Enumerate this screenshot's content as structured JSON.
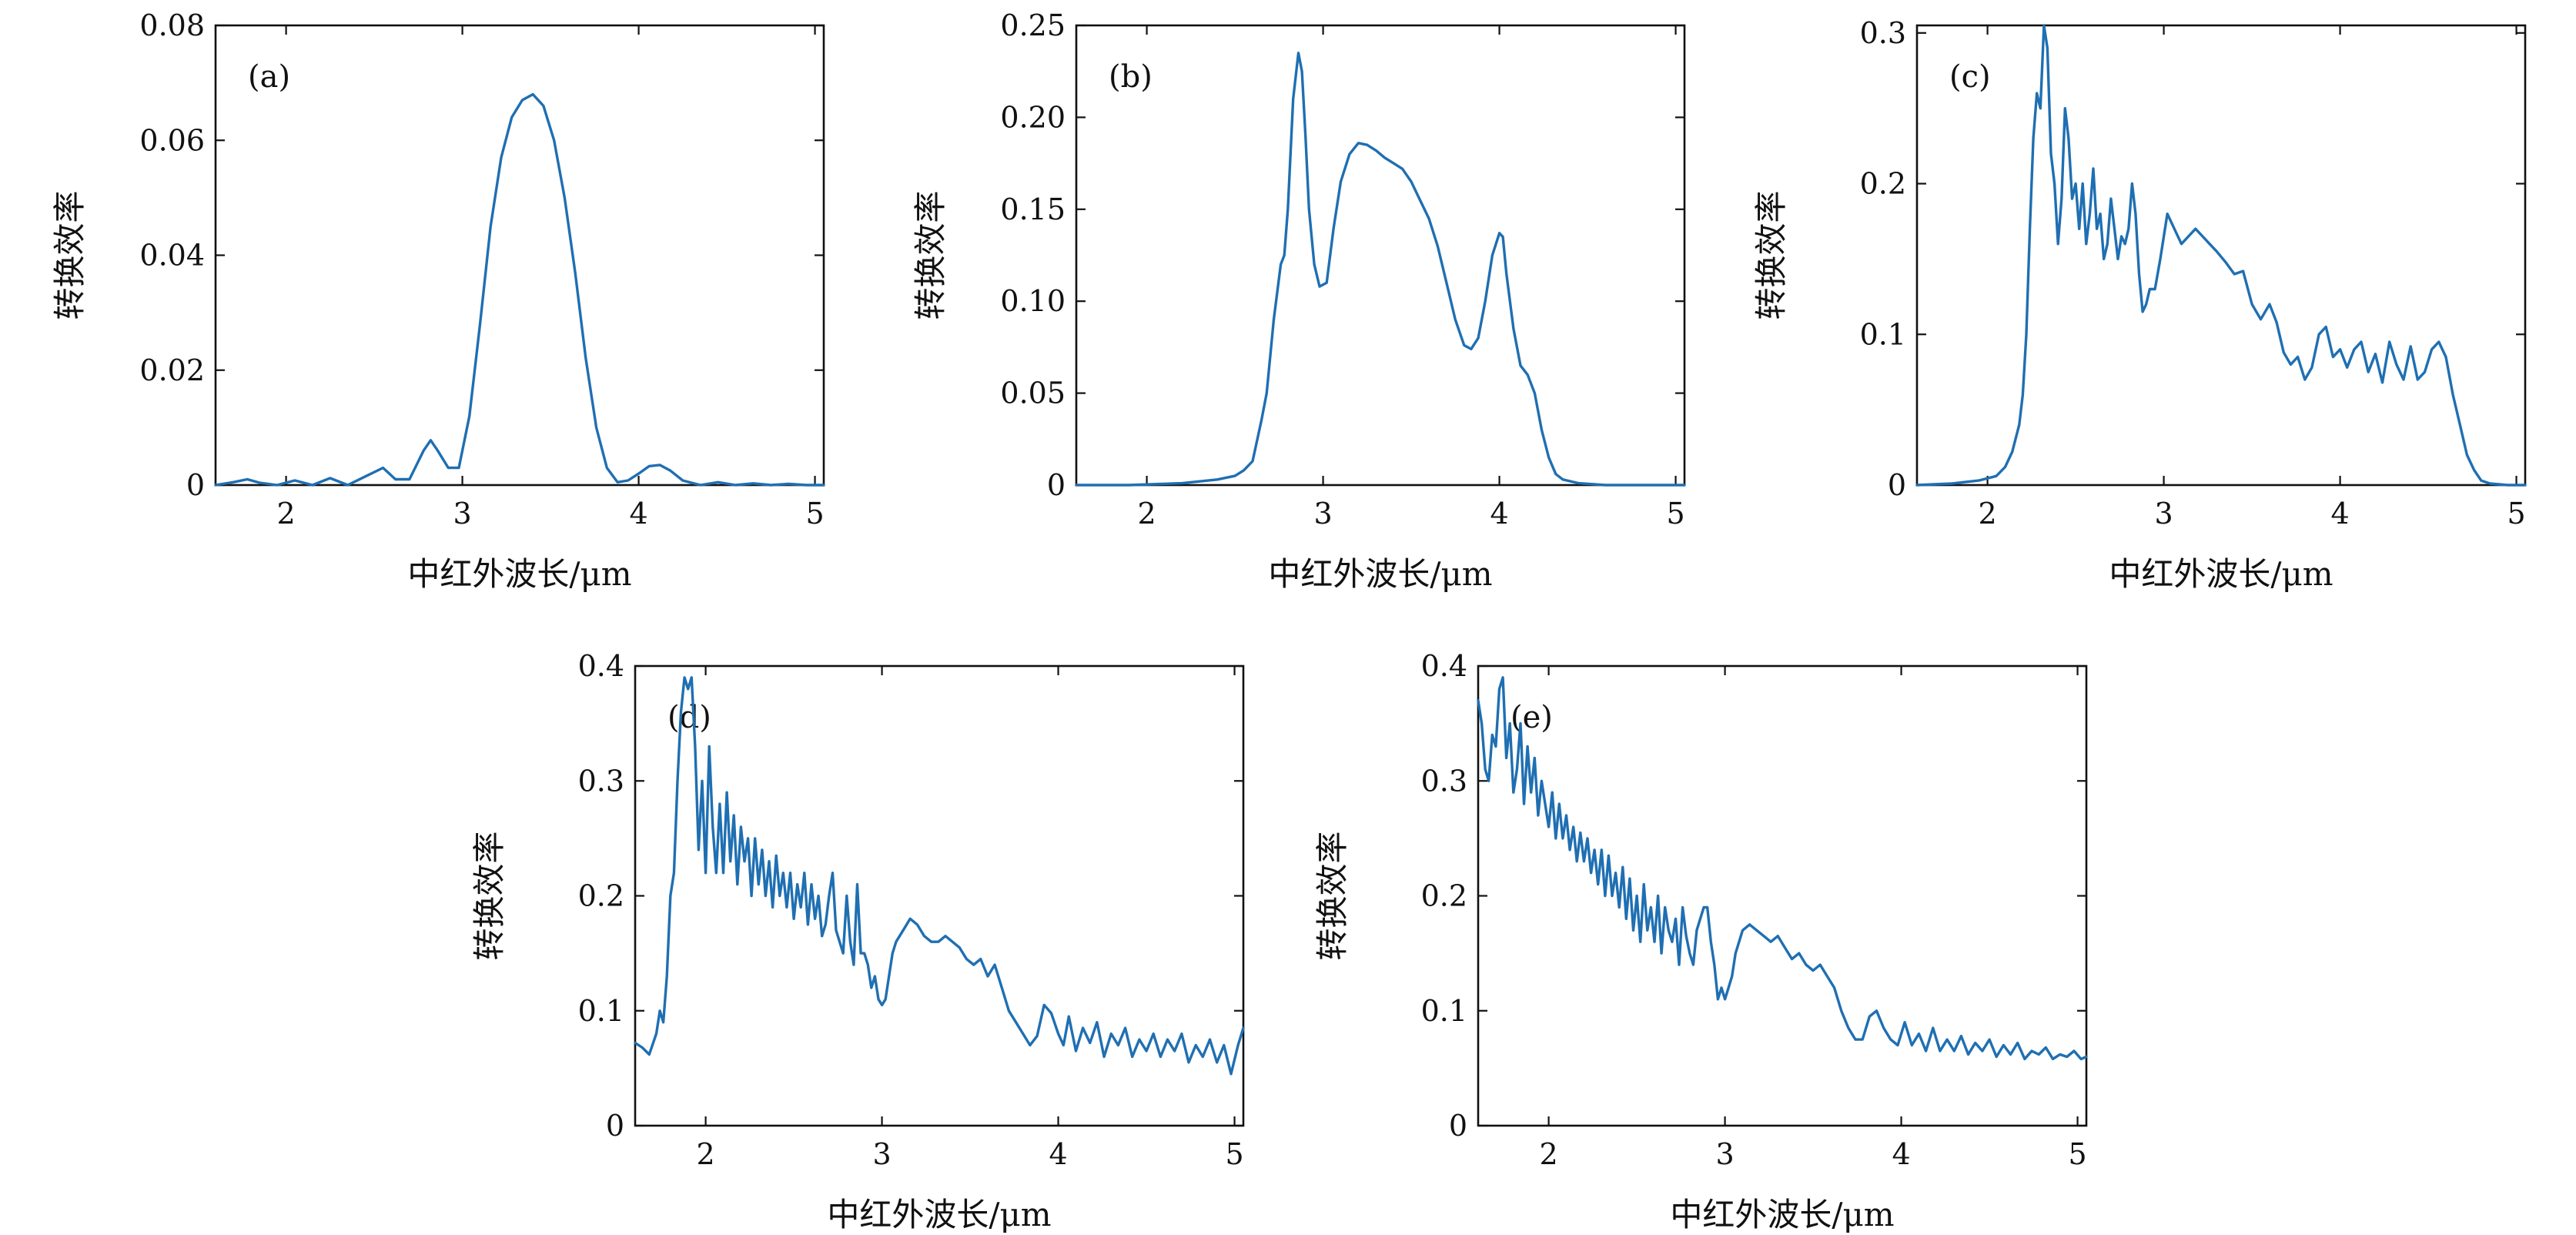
{
  "figure": {
    "background": "#ffffff",
    "line_color": "#1f6fb2"
  },
  "chart_data": [
    {
      "type": "line",
      "panel_label": "(a)",
      "xlabel": "中红外波长/μm",
      "ylabel": "转换效率",
      "xlim": [
        1.6,
        5.05
      ],
      "ylim": [
        0,
        0.08
      ],
      "xticks": [
        2,
        3,
        4,
        5
      ],
      "yticks": [
        0,
        0.02,
        0.04,
        0.06,
        0.08
      ],
      "ytick_labels": [
        "0",
        "0.02",
        "0.04",
        "0.06",
        "0.08"
      ],
      "series": [
        {
          "color": "#1f6fb2",
          "x": [
            1.6,
            1.7,
            1.78,
            1.85,
            1.95,
            2.05,
            2.15,
            2.25,
            2.35,
            2.45,
            2.55,
            2.62,
            2.7,
            2.78,
            2.82,
            2.86,
            2.92,
            2.98,
            3.04,
            3.1,
            3.16,
            3.22,
            3.28,
            3.34,
            3.4,
            3.46,
            3.52,
            3.58,
            3.64,
            3.7,
            3.76,
            3.82,
            3.88,
            3.94,
            4.0,
            4.06,
            4.12,
            4.18,
            4.25,
            4.35,
            4.45,
            4.55,
            4.65,
            4.75,
            4.85,
            4.95,
            5.05
          ],
          "y": [
            0,
            0.0005,
            0.001,
            0.0004,
            0,
            0.0008,
            0,
            0.0012,
            0,
            0.0015,
            0.003,
            0.001,
            0.001,
            0.006,
            0.0078,
            0.006,
            0.003,
            0.003,
            0.012,
            0.028,
            0.045,
            0.057,
            0.064,
            0.067,
            0.068,
            0.066,
            0.06,
            0.05,
            0.037,
            0.022,
            0.01,
            0.003,
            0.0005,
            0.0008,
            0.002,
            0.0033,
            0.0035,
            0.0025,
            0.0008,
            0,
            0.0005,
            0,
            0.0003,
            0,
            0.0002,
            0,
            0
          ]
        }
      ]
    },
    {
      "type": "line",
      "panel_label": "(b)",
      "xlabel": "中红外波长/μm",
      "ylabel": "转换效率",
      "xlim": [
        1.6,
        5.05
      ],
      "ylim": [
        0,
        0.25
      ],
      "xticks": [
        2,
        3,
        4,
        5
      ],
      "yticks": [
        0,
        0.05,
        0.1,
        0.15,
        0.2,
        0.25
      ],
      "ytick_labels": [
        "0",
        "0.05",
        "0.10",
        "0.15",
        "0.20",
        "0.25"
      ],
      "series": [
        {
          "color": "#1f6fb2",
          "x": [
            1.6,
            1.9,
            2.2,
            2.4,
            2.5,
            2.55,
            2.6,
            2.65,
            2.68,
            2.72,
            2.76,
            2.78,
            2.8,
            2.83,
            2.86,
            2.88,
            2.9,
            2.92,
            2.95,
            2.98,
            3.02,
            3.06,
            3.1,
            3.15,
            3.2,
            3.25,
            3.3,
            3.35,
            3.4,
            3.45,
            3.5,
            3.55,
            3.6,
            3.65,
            3.7,
            3.75,
            3.8,
            3.84,
            3.88,
            3.92,
            3.96,
            4.0,
            4.02,
            4.04,
            4.08,
            4.12,
            4.16,
            4.2,
            4.24,
            4.28,
            4.32,
            4.36,
            4.45,
            4.6,
            4.8,
            5.05
          ],
          "y": [
            0,
            0,
            0.001,
            0.003,
            0.005,
            0.008,
            0.013,
            0.035,
            0.05,
            0.09,
            0.12,
            0.125,
            0.15,
            0.21,
            0.235,
            0.225,
            0.19,
            0.15,
            0.12,
            0.108,
            0.11,
            0.14,
            0.165,
            0.18,
            0.186,
            0.185,
            0.182,
            0.178,
            0.175,
            0.172,
            0.165,
            0.155,
            0.145,
            0.13,
            0.11,
            0.09,
            0.076,
            0.074,
            0.08,
            0.1,
            0.125,
            0.137,
            0.135,
            0.115,
            0.085,
            0.065,
            0.06,
            0.05,
            0.03,
            0.015,
            0.006,
            0.003,
            0.001,
            0,
            0,
            0
          ]
        }
      ]
    },
    {
      "type": "line",
      "panel_label": "(c)",
      "xlabel": "中红外波长/μm",
      "ylabel": "转换效率",
      "xlim": [
        1.6,
        5.05
      ],
      "ylim": [
        0,
        0.305
      ],
      "xticks": [
        2,
        3,
        4,
        5
      ],
      "yticks": [
        0,
        0.1,
        0.2,
        0.3
      ],
      "ytick_labels": [
        "0",
        "0.1",
        "0.2",
        "0.3"
      ],
      "series": [
        {
          "color": "#1f6fb2",
          "x": [
            1.6,
            1.8,
            1.95,
            2.05,
            2.1,
            2.14,
            2.18,
            2.2,
            2.22,
            2.24,
            2.26,
            2.28,
            2.3,
            2.32,
            2.34,
            2.36,
            2.38,
            2.4,
            2.42,
            2.44,
            2.46,
            2.48,
            2.5,
            2.52,
            2.54,
            2.56,
            2.58,
            2.6,
            2.62,
            2.64,
            2.66,
            2.68,
            2.7,
            2.72,
            2.74,
            2.76,
            2.78,
            2.8,
            2.82,
            2.84,
            2.86,
            2.88,
            2.9,
            2.92,
            2.95,
            2.98,
            3.02,
            3.06,
            3.1,
            3.14,
            3.18,
            3.22,
            3.26,
            3.3,
            3.35,
            3.4,
            3.45,
            3.5,
            3.55,
            3.6,
            3.64,
            3.68,
            3.72,
            3.76,
            3.8,
            3.84,
            3.88,
            3.92,
            3.96,
            4.0,
            4.04,
            4.08,
            4.12,
            4.16,
            4.2,
            4.24,
            4.28,
            4.32,
            4.36,
            4.4,
            4.44,
            4.48,
            4.52,
            4.56,
            4.6,
            4.64,
            4.68,
            4.72,
            4.76,
            4.8,
            4.85,
            4.95,
            5.05
          ],
          "y": [
            0,
            0.001,
            0.003,
            0.006,
            0.012,
            0.022,
            0.04,
            0.06,
            0.1,
            0.17,
            0.23,
            0.26,
            0.25,
            0.305,
            0.29,
            0.22,
            0.2,
            0.16,
            0.19,
            0.25,
            0.23,
            0.19,
            0.2,
            0.17,
            0.2,
            0.16,
            0.18,
            0.21,
            0.17,
            0.18,
            0.15,
            0.16,
            0.19,
            0.17,
            0.15,
            0.165,
            0.16,
            0.17,
            0.2,
            0.18,
            0.14,
            0.115,
            0.12,
            0.13,
            0.13,
            0.15,
            0.18,
            0.17,
            0.16,
            0.165,
            0.17,
            0.165,
            0.16,
            0.155,
            0.148,
            0.14,
            0.142,
            0.12,
            0.11,
            0.12,
            0.108,
            0.088,
            0.08,
            0.085,
            0.07,
            0.078,
            0.1,
            0.105,
            0.085,
            0.09,
            0.078,
            0.09,
            0.095,
            0.075,
            0.087,
            0.068,
            0.095,
            0.08,
            0.07,
            0.092,
            0.07,
            0.075,
            0.09,
            0.095,
            0.085,
            0.06,
            0.04,
            0.02,
            0.01,
            0.003,
            0.001,
            0,
            0
          ]
        }
      ]
    },
    {
      "type": "line",
      "panel_label": "(d)",
      "xlabel": "中红外波长/μm",
      "ylabel": "转换效率",
      "xlim": [
        1.6,
        5.05
      ],
      "ylim": [
        0,
        0.4
      ],
      "xticks": [
        2,
        3,
        4,
        5
      ],
      "yticks": [
        0,
        0.1,
        0.2,
        0.3,
        0.4
      ],
      "ytick_labels": [
        "0",
        "0.1",
        "0.2",
        "0.3",
        "0.4"
      ],
      "series": [
        {
          "color": "#1f6fb2",
          "x": [
            1.6,
            1.64,
            1.68,
            1.72,
            1.74,
            1.76,
            1.78,
            1.8,
            1.82,
            1.84,
            1.86,
            1.88,
            1.9,
            1.92,
            1.94,
            1.96,
            1.98,
            2.0,
            2.02,
            2.04,
            2.06,
            2.08,
            2.1,
            2.12,
            2.14,
            2.16,
            2.18,
            2.2,
            2.22,
            2.24,
            2.26,
            2.28,
            2.3,
            2.32,
            2.34,
            2.36,
            2.38,
            2.4,
            2.42,
            2.44,
            2.46,
            2.48,
            2.5,
            2.52,
            2.54,
            2.56,
            2.58,
            2.6,
            2.62,
            2.64,
            2.66,
            2.68,
            2.7,
            2.72,
            2.74,
            2.76,
            2.78,
            2.8,
            2.82,
            2.84,
            2.86,
            2.88,
            2.9,
            2.92,
            2.94,
            2.96,
            2.98,
            3.0,
            3.02,
            3.04,
            3.06,
            3.08,
            3.12,
            3.16,
            3.2,
            3.24,
            3.28,
            3.32,
            3.36,
            3.4,
            3.44,
            3.48,
            3.52,
            3.56,
            3.6,
            3.64,
            3.68,
            3.72,
            3.76,
            3.8,
            3.84,
            3.88,
            3.92,
            3.96,
            4.0,
            4.03,
            4.06,
            4.1,
            4.14,
            4.18,
            4.22,
            4.26,
            4.3,
            4.34,
            4.38,
            4.42,
            4.46,
            4.5,
            4.54,
            4.58,
            4.62,
            4.66,
            4.7,
            4.74,
            4.78,
            4.82,
            4.86,
            4.9,
            4.94,
            4.98,
            5.02,
            5.05
          ],
          "y": [
            0.072,
            0.068,
            0.062,
            0.08,
            0.1,
            0.09,
            0.13,
            0.2,
            0.22,
            0.3,
            0.36,
            0.39,
            0.38,
            0.39,
            0.33,
            0.24,
            0.3,
            0.22,
            0.33,
            0.26,
            0.22,
            0.28,
            0.22,
            0.29,
            0.23,
            0.27,
            0.21,
            0.26,
            0.23,
            0.25,
            0.2,
            0.25,
            0.21,
            0.24,
            0.2,
            0.23,
            0.19,
            0.235,
            0.2,
            0.22,
            0.19,
            0.22,
            0.18,
            0.21,
            0.19,
            0.22,
            0.175,
            0.21,
            0.18,
            0.2,
            0.165,
            0.175,
            0.2,
            0.22,
            0.17,
            0.16,
            0.15,
            0.2,
            0.16,
            0.14,
            0.21,
            0.15,
            0.15,
            0.14,
            0.12,
            0.13,
            0.11,
            0.105,
            0.11,
            0.13,
            0.15,
            0.16,
            0.17,
            0.18,
            0.175,
            0.165,
            0.16,
            0.16,
            0.165,
            0.16,
            0.155,
            0.145,
            0.14,
            0.145,
            0.13,
            0.14,
            0.12,
            0.1,
            0.09,
            0.08,
            0.07,
            0.078,
            0.105,
            0.098,
            0.08,
            0.07,
            0.095,
            0.065,
            0.085,
            0.072,
            0.09,
            0.06,
            0.08,
            0.07,
            0.085,
            0.06,
            0.075,
            0.065,
            0.08,
            0.06,
            0.075,
            0.065,
            0.08,
            0.055,
            0.07,
            0.06,
            0.075,
            0.055,
            0.07,
            0.045,
            0.07,
            0.085
          ]
        }
      ]
    },
    {
      "type": "line",
      "panel_label": "(e)",
      "xlabel": "中红外波长/μm",
      "ylabel": "转换效率",
      "xlim": [
        1.6,
        5.05
      ],
      "ylim": [
        0,
        0.4
      ],
      "xticks": [
        2,
        3,
        4,
        5
      ],
      "yticks": [
        0,
        0.1,
        0.2,
        0.3,
        0.4
      ],
      "ytick_labels": [
        "0",
        "0.1",
        "0.2",
        "0.3",
        "0.4"
      ],
      "series": [
        {
          "color": "#1f6fb2",
          "x": [
            1.6,
            1.62,
            1.64,
            1.66,
            1.68,
            1.7,
            1.72,
            1.74,
            1.76,
            1.78,
            1.8,
            1.82,
            1.84,
            1.86,
            1.88,
            1.9,
            1.92,
            1.94,
            1.96,
            1.98,
            2.0,
            2.02,
            2.04,
            2.06,
            2.08,
            2.1,
            2.12,
            2.14,
            2.16,
            2.18,
            2.2,
            2.22,
            2.24,
            2.26,
            2.28,
            2.3,
            2.32,
            2.34,
            2.36,
            2.38,
            2.4,
            2.42,
            2.44,
            2.46,
            2.48,
            2.5,
            2.52,
            2.54,
            2.56,
            2.58,
            2.6,
            2.62,
            2.64,
            2.66,
            2.68,
            2.7,
            2.72,
            2.74,
            2.76,
            2.78,
            2.8,
            2.82,
            2.84,
            2.86,
            2.88,
            2.9,
            2.92,
            2.94,
            2.96,
            2.98,
            3.0,
            3.02,
            3.04,
            3.06,
            3.08,
            3.1,
            3.14,
            3.18,
            3.22,
            3.26,
            3.3,
            3.34,
            3.38,
            3.42,
            3.46,
            3.5,
            3.54,
            3.58,
            3.62,
            3.66,
            3.7,
            3.74,
            3.78,
            3.82,
            3.86,
            3.9,
            3.94,
            3.98,
            4.02,
            4.06,
            4.1,
            4.14,
            4.18,
            4.22,
            4.26,
            4.3,
            4.34,
            4.38,
            4.42,
            4.46,
            4.5,
            4.54,
            4.58,
            4.62,
            4.66,
            4.7,
            4.74,
            4.78,
            4.82,
            4.86,
            4.9,
            4.94,
            4.98,
            5.02,
            5.05
          ],
          "y": [
            0.37,
            0.35,
            0.31,
            0.3,
            0.34,
            0.33,
            0.38,
            0.39,
            0.32,
            0.35,
            0.29,
            0.31,
            0.35,
            0.28,
            0.33,
            0.29,
            0.32,
            0.27,
            0.3,
            0.28,
            0.26,
            0.29,
            0.25,
            0.28,
            0.25,
            0.27,
            0.24,
            0.26,
            0.23,
            0.255,
            0.23,
            0.25,
            0.22,
            0.24,
            0.21,
            0.24,
            0.2,
            0.235,
            0.2,
            0.22,
            0.19,
            0.225,
            0.18,
            0.215,
            0.17,
            0.2,
            0.16,
            0.21,
            0.17,
            0.19,
            0.16,
            0.2,
            0.15,
            0.19,
            0.17,
            0.16,
            0.18,
            0.14,
            0.19,
            0.165,
            0.15,
            0.14,
            0.17,
            0.18,
            0.19,
            0.19,
            0.16,
            0.14,
            0.11,
            0.12,
            0.11,
            0.12,
            0.13,
            0.15,
            0.16,
            0.17,
            0.175,
            0.17,
            0.165,
            0.16,
            0.165,
            0.155,
            0.145,
            0.15,
            0.14,
            0.135,
            0.14,
            0.13,
            0.12,
            0.1,
            0.085,
            0.075,
            0.075,
            0.095,
            0.1,
            0.085,
            0.075,
            0.07,
            0.09,
            0.07,
            0.08,
            0.065,
            0.085,
            0.065,
            0.075,
            0.065,
            0.078,
            0.062,
            0.072,
            0.065,
            0.075,
            0.06,
            0.07,
            0.062,
            0.072,
            0.058,
            0.065,
            0.062,
            0.068,
            0.058,
            0.062,
            0.06,
            0.065,
            0.058,
            0.06
          ]
        }
      ]
    }
  ]
}
